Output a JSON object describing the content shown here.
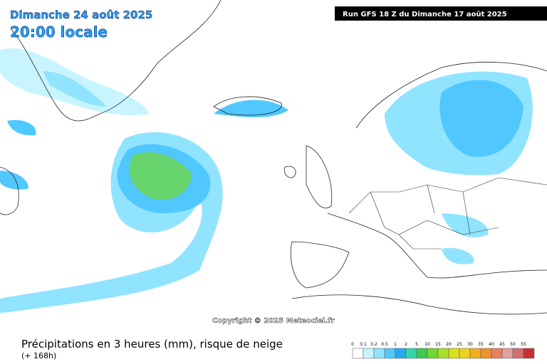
{
  "header": {
    "date": "Dimanche 24 août 2025",
    "time": "20:00 locale",
    "run": "Run GFS 18 Z du Dimanche 17 août 2025"
  },
  "copyright": "Copyright © 2025 Meteociel.fr",
  "footer": {
    "title": "Précipitations en 3 heures (mm), risque de neige",
    "lead": "(+ 168h)"
  },
  "legend": {
    "values": [
      0,
      0.1,
      0.2,
      0.5,
      1,
      2,
      5,
      10,
      15,
      20,
      25,
      30,
      35,
      40,
      45,
      50,
      55
    ],
    "colors": [
      "#ffffff",
      "#c8f4ff",
      "#90e4ff",
      "#50c8ff",
      "#2aa8f0",
      "#30d8a8",
      "#40c850",
      "#70d830",
      "#a8e028",
      "#d8e020",
      "#f0d020",
      "#f0b020",
      "#f09030",
      "#e88060",
      "#e0a0a0",
      "#d07070",
      "#c83030"
    ]
  }
}
